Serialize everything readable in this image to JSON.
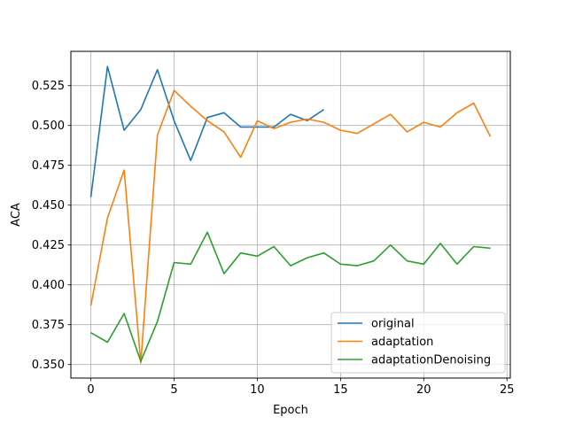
{
  "chart_data": {
    "type": "line",
    "xlabel": "Epoch",
    "ylabel": "ACA",
    "xlim": [
      -1.2,
      25.2
    ],
    "ylim": [
      0.3415,
      0.5465
    ],
    "xticks": [
      0,
      5,
      10,
      15,
      20,
      25
    ],
    "yticks": [
      0.35,
      0.375,
      0.4,
      0.425,
      0.45,
      0.475,
      0.5,
      0.525
    ],
    "xtick_labels": [
      "0",
      "5",
      "10",
      "15",
      "20",
      "25"
    ],
    "ytick_labels": [
      "0.350",
      "0.375",
      "0.400",
      "0.425",
      "0.450",
      "0.475",
      "0.500",
      "0.525"
    ],
    "grid": true,
    "legend_position": "lower-right",
    "series": [
      {
        "name": "original",
        "color": "#1f77b4",
        "x": [
          0,
          1,
          2,
          3,
          4,
          5,
          6,
          7,
          8,
          9,
          10,
          11,
          12,
          13,
          14
        ],
        "values": [
          0.455,
          0.537,
          0.497,
          0.51,
          0.535,
          0.503,
          0.478,
          0.505,
          0.508,
          0.499,
          0.499,
          0.499,
          0.507,
          0.503,
          0.51
        ]
      },
      {
        "name": "adaptation",
        "color": "#ff7f0e",
        "x": [
          0,
          1,
          2,
          3,
          4,
          5,
          6,
          7,
          8,
          9,
          10,
          11,
          12,
          13,
          14,
          15,
          16,
          17,
          18,
          19,
          20,
          21,
          22,
          23,
          24
        ],
        "values": [
          0.387,
          0.442,
          0.472,
          0.351,
          0.494,
          0.522,
          0.512,
          0.503,
          0.496,
          0.48,
          0.503,
          0.498,
          0.502,
          0.504,
          0.502,
          0.497,
          0.495,
          0.501,
          0.507,
          0.496,
          0.502,
          0.499,
          0.508,
          0.514,
          0.493
        ]
      },
      {
        "name": "adaptationDenoising",
        "color": "#2ca02c",
        "x": [
          0,
          1,
          2,
          3,
          4,
          5,
          6,
          7,
          8,
          9,
          10,
          11,
          12,
          13,
          14,
          15,
          16,
          17,
          18,
          19,
          20,
          21,
          22,
          23,
          24
        ],
        "values": [
          0.37,
          0.364,
          0.382,
          0.352,
          0.377,
          0.414,
          0.413,
          0.433,
          0.407,
          0.42,
          0.418,
          0.424,
          0.412,
          0.417,
          0.42,
          0.413,
          0.412,
          0.415,
          0.425,
          0.415,
          0.413,
          0.426,
          0.413,
          0.424,
          0.423
        ]
      }
    ]
  }
}
